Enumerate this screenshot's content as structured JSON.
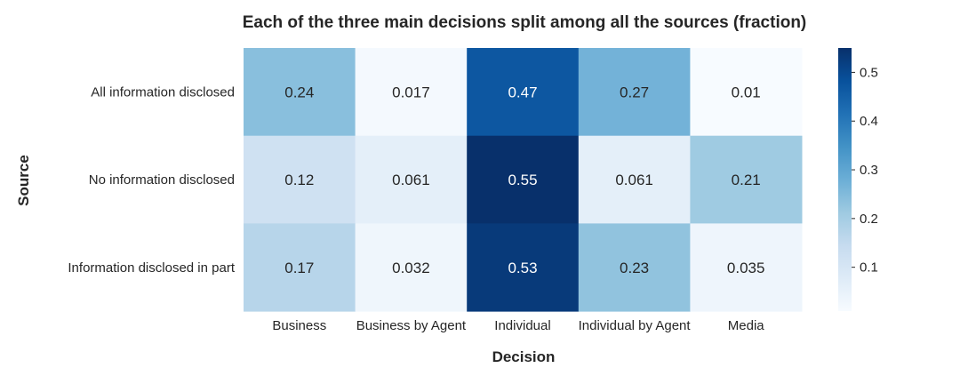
{
  "chart_data": {
    "type": "heatmap",
    "title": "Each of the three main decisions split among all the sources (fraction)",
    "xlabel": "Decision",
    "ylabel": "Source",
    "x_categories": [
      "Business",
      "Business by Agent",
      "Individual",
      "Individual by Agent",
      "Media"
    ],
    "y_categories": [
      "All information disclosed",
      "No information disclosed",
      "Information disclosed in part"
    ],
    "values": [
      [
        0.24,
        0.017,
        0.47,
        0.27,
        0.01
      ],
      [
        0.12,
        0.061,
        0.55,
        0.061,
        0.21
      ],
      [
        0.17,
        0.032,
        0.53,
        0.23,
        0.035
      ]
    ],
    "cell_labels": [
      [
        "0.24",
        "0.017",
        "0.47",
        "0.27",
        "0.01"
      ],
      [
        "0.12",
        "0.061",
        "0.55",
        "0.061",
        "0.21"
      ],
      [
        "0.17",
        "0.032",
        "0.53",
        "0.23",
        "0.035"
      ]
    ],
    "colormap": "Blues",
    "color_range": [
      0.01,
      0.55
    ],
    "colorbar_ticks": [
      "0.1",
      "0.2",
      "0.3",
      "0.4",
      "0.5"
    ],
    "colorbar_tick_values": [
      0.1,
      0.2,
      0.3,
      0.4,
      0.5
    ]
  }
}
